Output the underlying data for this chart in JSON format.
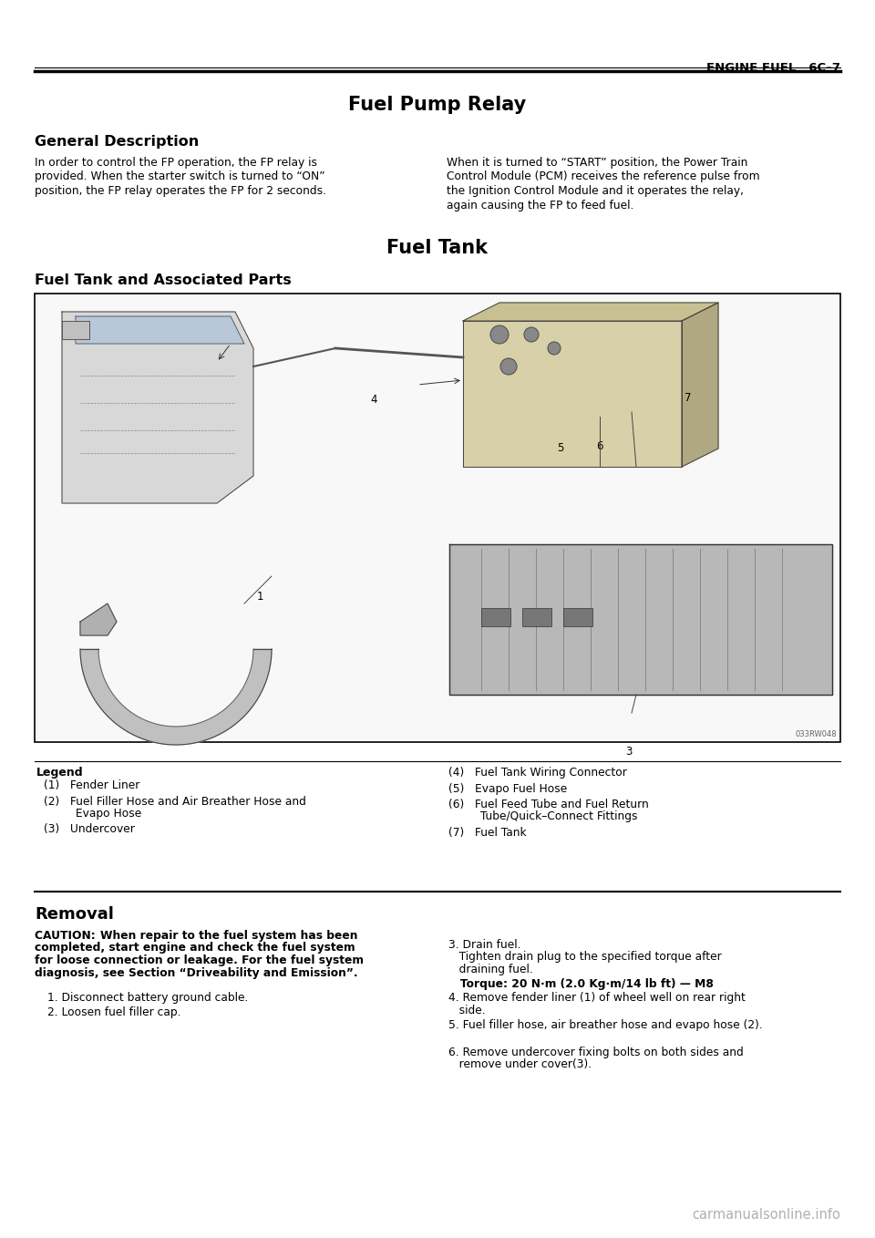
{
  "page_header_right": "ENGINE FUEL   6C–7",
  "section_title_1": "Fuel Pump Relay",
  "subsection_title_1": "General Description",
  "body_left_lines": [
    "In order to control the FP operation, the FP relay is",
    "provided. When the starter switch is turned to “ON”",
    "position, the FP relay operates the FP for 2 seconds."
  ],
  "body_right_lines": [
    "When it is turned to “START” position, the Power Train",
    "Control Module (PCM) receives the reference pulse from",
    "the Ignition Control Module and it operates the relay,",
    "again causing the FP to feed fuel."
  ],
  "section_title_2": "Fuel Tank",
  "subsection_title_2": "Fuel Tank and Associated Parts",
  "diagram_label": "033RW048",
  "legend_title": "Legend",
  "legend_items_left": [
    [
      "(1)   Fender Liner"
    ],
    [
      "(2)   Fuel Filler Hose and Air Breather Hose and",
      "         Evapo Hose"
    ],
    [
      "(3)   Undercover"
    ]
  ],
  "legend_items_right": [
    [
      "(4)   Fuel Tank Wiring Connector"
    ],
    [
      "(5)   Evapo Fuel Hose"
    ],
    [
      "(6)   Fuel Feed Tube and Fuel Return",
      "         Tube/Quick–Connect Fittings"
    ],
    [
      "(7)   Fuel Tank"
    ]
  ],
  "removal_title": "Removal",
  "caution_prefix": "CAUTION:   ",
  "caution_body_lines": [
    "When repair to the fuel system has been",
    "completed, start engine and check the fuel system",
    "for loose connection or leakage. For the fuel system",
    "diagnosis, see Section “Driveability and Emission”."
  ],
  "removal_steps_left": [
    "1. Disconnect battery ground cable.",
    "2. Loosen fuel filler cap."
  ],
  "removal_step3_lines": [
    "3. Drain fuel.",
    "   Tighten drain plug to the specified torque after",
    "   draining fuel."
  ],
  "torque_line": "   Torque: 20 N·m (2.0 Kg·m/14 lb ft) — M8",
  "removal_steps_right_rest": [
    [
      "4. Remove fender liner (1) of wheel well on rear right",
      "   side."
    ],
    [
      "5. Fuel filler hose, air breather hose and evapo hose (2)."
    ],
    [
      "6. Remove undercover fixing bolts on both sides and",
      "   remove under cover(3)."
    ]
  ],
  "watermark": "carmanualsonline.info",
  "bg_color": "#ffffff",
  "text_color": "#000000"
}
